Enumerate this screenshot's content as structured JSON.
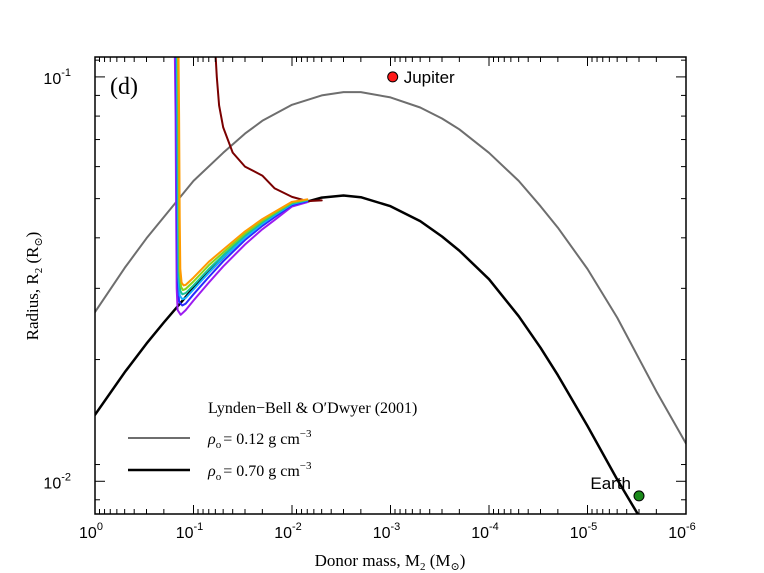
{
  "chart_data": {
    "type": "line",
    "panel_label": "(d)",
    "xlabel_main": "Donor mass, M",
    "xlabel_sub": "2",
    "xlabel_paren_open": " (M",
    "xlabel_paren_sub": "⊙",
    "xlabel_paren_close": ")",
    "ylabel_main": "Radius, R",
    "ylabel_sub": "2",
    "ylabel_paren_open": " (R",
    "ylabel_paren_sub": "⊙",
    "ylabel_paren_close": ")",
    "x_scale": "log",
    "y_scale": "log",
    "x_reversed": true,
    "xlim": [
      1,
      1e-06
    ],
    "ylim": [
      0.0083,
      0.112
    ],
    "x_ticks": [
      {
        "value": 1,
        "base": "10",
        "exp": "0"
      },
      {
        "value": 0.1,
        "base": "10",
        "exp": "-1"
      },
      {
        "value": 0.01,
        "base": "10",
        "exp": "-2"
      },
      {
        "value": 0.001,
        "base": "10",
        "exp": "-3"
      },
      {
        "value": 0.0001,
        "base": "10",
        "exp": "-4"
      },
      {
        "value": 1e-05,
        "base": "10",
        "exp": "-5"
      },
      {
        "value": 1e-06,
        "base": "10",
        "exp": "-6"
      }
    ],
    "y_ticks": [
      {
        "value": 0.1,
        "base": "10",
        "exp": "-1"
      },
      {
        "value": 0.01,
        "base": "10",
        "exp": "-2"
      }
    ],
    "legend": {
      "title": "Lynden−Bell & O′Dwyer (2001)",
      "position": "lower-left",
      "entries": [
        {
          "symbol": "ρ",
          "sub": "o",
          "text": "= 0.12 g cm",
          "exp": "−3",
          "color": "#6e6e6e"
        },
        {
          "symbol": "ρ",
          "sub": "o",
          "text": "= 0.70 g cm",
          "exp": "−3",
          "color": "#000000"
        }
      ]
    },
    "annotations": [
      {
        "label": "Jupiter",
        "x": 0.00095,
        "y": 0.1,
        "color": "#ff1a1a"
      },
      {
        "label": "Earth",
        "x": 3e-06,
        "y": 0.0092,
        "color": "#1a8a1a"
      }
    ],
    "series": [
      {
        "color": "#6e6e6e",
        "width": 2,
        "points": [
          [
            1,
            0.0262
          ],
          [
            0.5,
            0.0337
          ],
          [
            0.3,
            0.0399
          ],
          [
            0.2,
            0.045
          ],
          [
            0.1,
            0.0553
          ],
          [
            0.05,
            0.0649
          ],
          [
            0.03,
            0.0724
          ],
          [
            0.02,
            0.0779
          ],
          [
            0.01,
            0.0853
          ],
          [
            0.005,
            0.09
          ],
          [
            0.003,
            0.0917
          ],
          [
            0.002,
            0.0917
          ],
          [
            0.001,
            0.089
          ],
          [
            0.0005,
            0.084
          ],
          [
            0.0003,
            0.0789
          ],
          [
            0.0002,
            0.0742
          ],
          [
            0.0001,
            0.0649
          ],
          [
            5e-05,
            0.0553
          ],
          [
            3e-05,
            0.0479
          ],
          [
            2e-05,
            0.0424
          ],
          [
            1e-05,
            0.0335
          ],
          [
            5e-06,
            0.0254
          ],
          [
            3e-06,
            0.0201
          ],
          [
            2e-06,
            0.0167
          ],
          [
            1e-06,
            0.0124
          ]
        ]
      },
      {
        "color": "#000000",
        "width": 2.5,
        "points": [
          [
            1,
            0.0146
          ],
          [
            0.5,
            0.0186
          ],
          [
            0.3,
            0.0219
          ],
          [
            0.2,
            0.0247
          ],
          [
            0.1,
            0.0301
          ],
          [
            0.05,
            0.0357
          ],
          [
            0.03,
            0.0403
          ],
          [
            0.02,
            0.0437
          ],
          [
            0.01,
            0.048
          ],
          [
            0.005,
            0.0503
          ],
          [
            0.003,
            0.0509
          ],
          [
            0.002,
            0.0504
          ],
          [
            0.001,
            0.0479
          ],
          [
            0.0005,
            0.044
          ],
          [
            0.0003,
            0.0403
          ],
          [
            0.0002,
            0.0372
          ],
          [
            0.0001,
            0.0316
          ],
          [
            5e-05,
            0.0256
          ],
          [
            3e-05,
            0.0214
          ],
          [
            2e-05,
            0.0183
          ],
          [
            1e-05,
            0.0137
          ],
          [
            5e-06,
            0.0101
          ],
          [
            3e-06,
            0.0082
          ]
        ]
      },
      {
        "color": "#7a0000",
        "width": 2,
        "points": [
          [
            0.06,
            0.115
          ],
          [
            0.058,
            0.1
          ],
          [
            0.055,
            0.085
          ],
          [
            0.05,
            0.075
          ],
          [
            0.04,
            0.065
          ],
          [
            0.03,
            0.06
          ],
          [
            0.02,
            0.057
          ],
          [
            0.015,
            0.053
          ],
          [
            0.01,
            0.0505
          ],
          [
            0.007,
            0.0493
          ],
          [
            0.005,
            0.0495
          ]
        ]
      },
      {
        "color": "#9c1cf0",
        "width": 2,
        "points": [
          [
            0.155,
            0.115
          ],
          [
            0.152,
            0.08
          ],
          [
            0.15,
            0.045
          ],
          [
            0.148,
            0.03
          ],
          [
            0.145,
            0.0265
          ],
          [
            0.135,
            0.0258
          ],
          [
            0.12,
            0.0265
          ],
          [
            0.1,
            0.028
          ],
          [
            0.07,
            0.031
          ],
          [
            0.05,
            0.034
          ],
          [
            0.03,
            0.0385
          ],
          [
            0.02,
            0.042
          ],
          [
            0.015,
            0.0443
          ],
          [
            0.01,
            0.0478
          ],
          [
            0.007,
            0.049
          ]
        ]
      },
      {
        "color": "#2a2aff",
        "width": 2,
        "points": [
          [
            0.15,
            0.115
          ],
          [
            0.148,
            0.08
          ],
          [
            0.146,
            0.045
          ],
          [
            0.144,
            0.031
          ],
          [
            0.14,
            0.0278
          ],
          [
            0.13,
            0.0272
          ],
          [
            0.12,
            0.0275
          ],
          [
            0.1,
            0.029
          ],
          [
            0.07,
            0.032
          ],
          [
            0.05,
            0.035
          ],
          [
            0.03,
            0.0395
          ],
          [
            0.02,
            0.0428
          ],
          [
            0.015,
            0.045
          ],
          [
            0.01,
            0.0482
          ],
          [
            0.007,
            0.0493
          ]
        ]
      },
      {
        "color": "#16b0ff",
        "width": 2,
        "points": [
          [
            0.148,
            0.115
          ],
          [
            0.146,
            0.08
          ],
          [
            0.144,
            0.045
          ],
          [
            0.142,
            0.032
          ],
          [
            0.138,
            0.0288
          ],
          [
            0.13,
            0.0282
          ],
          [
            0.12,
            0.0284
          ],
          [
            0.1,
            0.0298
          ],
          [
            0.07,
            0.0328
          ],
          [
            0.05,
            0.0357
          ],
          [
            0.03,
            0.04
          ],
          [
            0.02,
            0.0433
          ],
          [
            0.015,
            0.0455
          ],
          [
            0.01,
            0.0485
          ],
          [
            0.007,
            0.0495
          ]
        ]
      },
      {
        "color": "#17c29a",
        "width": 2,
        "points": [
          [
            0.146,
            0.115
          ],
          [
            0.144,
            0.08
          ],
          [
            0.142,
            0.045
          ],
          [
            0.14,
            0.0325
          ],
          [
            0.136,
            0.0296
          ],
          [
            0.13,
            0.029
          ],
          [
            0.12,
            0.0292
          ],
          [
            0.1,
            0.0305
          ],
          [
            0.07,
            0.0335
          ],
          [
            0.05,
            0.0362
          ],
          [
            0.03,
            0.0405
          ],
          [
            0.02,
            0.0437
          ],
          [
            0.015,
            0.0458
          ],
          [
            0.01,
            0.0487
          ],
          [
            0.007,
            0.0496
          ]
        ]
      },
      {
        "color": "#86d21c",
        "width": 2,
        "points": [
          [
            0.144,
            0.115
          ],
          [
            0.142,
            0.08
          ],
          [
            0.14,
            0.045
          ],
          [
            0.138,
            0.033
          ],
          [
            0.134,
            0.0303
          ],
          [
            0.128,
            0.0297
          ],
          [
            0.12,
            0.0299
          ],
          [
            0.1,
            0.0312
          ],
          [
            0.07,
            0.0342
          ],
          [
            0.05,
            0.0368
          ],
          [
            0.03,
            0.041
          ],
          [
            0.02,
            0.0441
          ],
          [
            0.015,
            0.0461
          ],
          [
            0.01,
            0.0489
          ],
          [
            0.007,
            0.0497
          ]
        ]
      },
      {
        "color": "#ff9a00",
        "width": 2,
        "points": [
          [
            0.142,
            0.115
          ],
          [
            0.14,
            0.08
          ],
          [
            0.138,
            0.045
          ],
          [
            0.136,
            0.0335
          ],
          [
            0.132,
            0.031
          ],
          [
            0.126,
            0.0305
          ],
          [
            0.12,
            0.0306
          ],
          [
            0.1,
            0.0319
          ],
          [
            0.07,
            0.0349
          ],
          [
            0.05,
            0.0374
          ],
          [
            0.03,
            0.0415
          ],
          [
            0.02,
            0.0445
          ],
          [
            0.015,
            0.0464
          ],
          [
            0.01,
            0.0491
          ],
          [
            0.007,
            0.0498
          ]
        ]
      }
    ]
  }
}
